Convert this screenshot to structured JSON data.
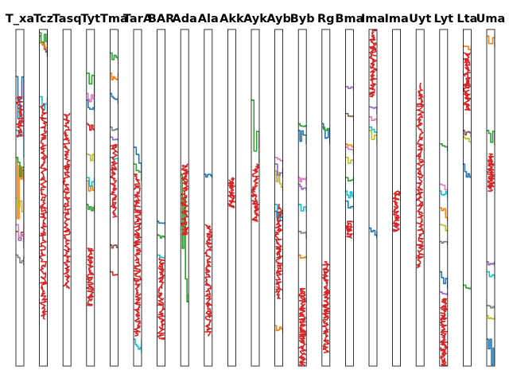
{
  "chart_data": {
    "type": "line",
    "layout": "small-multiples-row",
    "panel_count": 21,
    "grid": false,
    "axes_visible": false,
    "legend": "none",
    "panel_titles": [
      "T_xa",
      "Tcz",
      "Tasq",
      "Tyt",
      "Tma",
      "TarA",
      "BAR",
      "Ada",
      "Ala",
      "Akk",
      "Ayk",
      "Ayb",
      "Byb",
      "Rg",
      "Bma",
      "Ima",
      "Ima",
      "Uyt",
      "Lyt",
      "Lta",
      "Uma"
    ],
    "palette": {
      "red": "#d62728",
      "blue": "#1f77b4",
      "orange": "#ff7f0e",
      "green": "#2ca02c",
      "purple": "#9467bd",
      "brown": "#8c564b",
      "pink": "#e377c2",
      "gray": "#7f7f7f",
      "olive": "#bcbd22",
      "cyan": "#17becf"
    },
    "y_range": [
      0,
      1
    ],
    "panels": [
      {
        "traces": [
          {
            "color": "red",
            "kind": "noisy",
            "y_range": [
              0.68,
              0.8
            ],
            "density": 60
          },
          {
            "color": "blue",
            "kind": "step",
            "y_range": [
              0.68,
              0.86
            ]
          },
          {
            "color": "orange",
            "kind": "step",
            "y_range": [
              0.4,
              0.62
            ]
          },
          {
            "color": "green",
            "kind": "step",
            "y_range": [
              0.55,
              0.62
            ]
          },
          {
            "color": "cyan",
            "kind": "step",
            "y_range": [
              0.62,
              0.7
            ]
          },
          {
            "color": "purple",
            "kind": "step",
            "y_range": [
              0.35,
              0.4
            ]
          },
          {
            "color": "brown",
            "kind": "step",
            "y_range": [
              0.37,
              0.4
            ]
          },
          {
            "color": "olive",
            "kind": "step",
            "y_range": [
              0.45,
              0.5
            ]
          },
          {
            "color": "pink",
            "kind": "step",
            "y_range": [
              0.36,
              0.42
            ]
          },
          {
            "color": "gray",
            "kind": "step",
            "y_range": [
              0.3,
              0.33
            ]
          }
        ]
      },
      {
        "traces": [
          {
            "color": "red",
            "kind": "noisy",
            "y_range": [
              0.14,
              0.78
            ],
            "density": 220
          },
          {
            "color": "brown",
            "kind": "step",
            "y_range": [
              0.92,
              0.98
            ]
          },
          {
            "color": "green",
            "kind": "step",
            "y_range": [
              0.95,
              0.99
            ]
          },
          {
            "color": "cyan",
            "kind": "step",
            "y_range": [
              0.75,
              0.8
            ]
          },
          {
            "color": "orange",
            "kind": "step",
            "y_range": [
              0.94,
              0.96
            ]
          }
        ]
      },
      {
        "traces": [
          {
            "color": "red",
            "kind": "noisy",
            "y_range": [
              0.23,
              0.75
            ],
            "density": 200
          }
        ]
      },
      {
        "traces": [
          {
            "color": "red",
            "kind": "noisy",
            "y_range": [
              0.18,
              0.35
            ],
            "density": 90
          },
          {
            "color": "red",
            "kind": "step",
            "y_range": [
              0.7,
              0.72
            ]
          },
          {
            "color": "green",
            "kind": "step",
            "y_range": [
              0.8,
              0.87
            ]
          },
          {
            "color": "pink",
            "kind": "step",
            "y_range": [
              0.78,
              0.81
            ]
          },
          {
            "color": "blue",
            "kind": "step",
            "y_range": [
              0.76,
              0.79
            ]
          },
          {
            "color": "olive",
            "kind": "step",
            "y_range": [
              0.61,
              0.63
            ]
          },
          {
            "color": "orange",
            "kind": "step",
            "y_range": [
              0.52,
              0.55
            ]
          },
          {
            "color": "cyan",
            "kind": "step",
            "y_range": [
              0.53,
              0.56
            ]
          },
          {
            "color": "green",
            "kind": "step",
            "y_range": [
              0.46,
              0.48
            ]
          }
        ]
      },
      {
        "traces": [
          {
            "color": "red",
            "kind": "noisy",
            "y_range": [
              0.44,
              0.66
            ],
            "density": 90
          },
          {
            "color": "red",
            "kind": "step",
            "y_range": [
              0.27,
              0.28
            ]
          },
          {
            "color": "green",
            "kind": "step",
            "y_range": [
              0.91,
              0.93
            ]
          },
          {
            "color": "orange",
            "kind": "step",
            "y_range": [
              0.85,
              0.87
            ]
          },
          {
            "color": "blue",
            "kind": "step",
            "y_range": [
              0.78,
              0.81
            ]
          },
          {
            "color": "gray",
            "kind": "step",
            "y_range": [
              0.7,
              0.71
            ]
          },
          {
            "color": "purple",
            "kind": "step",
            "y_range": [
              0.67,
              0.68
            ]
          },
          {
            "color": "cyan",
            "kind": "step",
            "y_range": [
              0.61,
              0.62
            ]
          },
          {
            "color": "brown",
            "kind": "step",
            "y_range": [
              0.35,
              0.36
            ]
          }
        ]
      },
      {
        "traces": [
          {
            "color": "red",
            "kind": "noisy",
            "y_range": [
              0.09,
              0.57
            ],
            "density": 200
          },
          {
            "color": "blue",
            "kind": "step",
            "y_range": [
              0.58,
              0.65
            ]
          },
          {
            "color": "cyan",
            "kind": "step",
            "y_range": [
              0.04,
              0.08
            ]
          },
          {
            "color": "green",
            "kind": "step",
            "y_range": [
              0.55,
              0.6
            ]
          }
        ]
      },
      {
        "traces": [
          {
            "color": "red",
            "kind": "noisy",
            "y_range": [
              0.08,
              0.32
            ],
            "density": 120
          },
          {
            "color": "blue",
            "kind": "step",
            "y_range": [
              0.42,
              0.43
            ]
          },
          {
            "color": "green",
            "kind": "step",
            "y_range": [
              0.38,
              0.39
            ]
          },
          {
            "color": "cyan",
            "kind": "step",
            "y_range": [
              0.32,
              0.33
            ]
          }
        ]
      },
      {
        "traces": [
          {
            "color": "red",
            "kind": "noisy",
            "y_range": [
              0.39,
              0.6
            ],
            "density": 100
          },
          {
            "color": "green",
            "kind": "step",
            "y_range": [
              0.19,
              0.57
            ]
          }
        ]
      },
      {
        "traces": [
          {
            "color": "red",
            "kind": "noisy",
            "y_range": [
              0.09,
              0.42
            ],
            "density": 130
          },
          {
            "color": "blue",
            "kind": "step",
            "y_range": [
              0.56,
              0.57
            ]
          }
        ]
      },
      {
        "traces": [
          {
            "color": "red",
            "kind": "noisy",
            "y_range": [
              0.47,
              0.56
            ],
            "density": 60
          }
        ]
      },
      {
        "traces": [
          {
            "color": "red",
            "kind": "noisy",
            "y_range": [
              0.43,
              0.6
            ],
            "density": 90
          },
          {
            "color": "green",
            "kind": "step",
            "y_range": [
              0.6,
              0.79
            ]
          }
        ]
      },
      {
        "traces": [
          {
            "color": "red",
            "kind": "noisy",
            "y_range": [
              0.2,
              0.48
            ],
            "density": 120
          },
          {
            "color": "pink",
            "kind": "step",
            "y_range": [
              0.6,
              0.62
            ]
          },
          {
            "color": "cyan",
            "kind": "step",
            "y_range": [
              0.42,
              0.48
            ]
          },
          {
            "color": "olive",
            "kind": "step",
            "y_range": [
              0.52,
              0.58
            ]
          },
          {
            "color": "orange",
            "kind": "step",
            "y_range": [
              0.1,
              0.12
            ]
          },
          {
            "color": "purple",
            "kind": "step",
            "y_range": [
              0.56,
              0.6
            ]
          },
          {
            "color": "blue",
            "kind": "step",
            "y_range": [
              0.44,
              0.46
            ]
          }
        ]
      },
      {
        "traces": [
          {
            "color": "red",
            "kind": "noisy",
            "y_range": [
              0.0,
              0.23
            ],
            "density": 150
          },
          {
            "color": "green",
            "kind": "step",
            "y_range": [
              0.71,
              0.72
            ]
          },
          {
            "color": "blue",
            "kind": "step",
            "y_range": [
              0.66,
              0.7
            ]
          },
          {
            "color": "pink",
            "kind": "step",
            "y_range": [
              0.54,
              0.56
            ]
          },
          {
            "color": "purple",
            "kind": "step",
            "y_range": [
              0.52,
              0.54
            ]
          },
          {
            "color": "cyan",
            "kind": "step",
            "y_range": [
              0.46,
              0.48
            ]
          },
          {
            "color": "gray",
            "kind": "step",
            "y_range": [
              0.38,
              0.4
            ]
          },
          {
            "color": "orange",
            "kind": "step",
            "y_range": [
              0.32,
              0.33
            ]
          }
        ]
      },
      {
        "traces": [
          {
            "color": "red",
            "kind": "noisy",
            "y_range": [
              0.04,
              0.31
            ],
            "density": 150
          },
          {
            "color": "blue",
            "kind": "step",
            "y_range": [
              0.66,
              0.72
            ]
          },
          {
            "color": "green",
            "kind": "step",
            "y_range": [
              0.7,
              0.71
            ]
          }
        ]
      },
      {
        "traces": [
          {
            "color": "red",
            "kind": "noisy",
            "y_range": [
              0.38,
              0.43
            ],
            "density": 40
          },
          {
            "color": "purple",
            "kind": "step",
            "y_range": [
              0.82,
              0.83
            ]
          },
          {
            "color": "orange",
            "kind": "step",
            "y_range": [
              0.65,
              0.66
            ]
          },
          {
            "color": "olive",
            "kind": "step",
            "y_range": [
              0.6,
              0.62
            ]
          },
          {
            "color": "pink",
            "kind": "step",
            "y_range": [
              0.63,
              0.65
            ]
          },
          {
            "color": "brown",
            "kind": "step",
            "y_range": [
              0.74,
              0.75
            ]
          },
          {
            "color": "green",
            "kind": "step",
            "y_range": [
              0.55,
              0.56
            ]
          },
          {
            "color": "blue",
            "kind": "step",
            "y_range": [
              0.47,
              0.49
            ]
          },
          {
            "color": "cyan",
            "kind": "step",
            "y_range": [
              0.5,
              0.52
            ]
          }
        ]
      },
      {
        "traces": [
          {
            "color": "red",
            "kind": "noisy",
            "y_range": [
              0.8,
              1.0
            ],
            "density": 120
          },
          {
            "color": "blue",
            "kind": "step",
            "y_range": [
              0.38,
              0.41
            ]
          },
          {
            "color": "olive",
            "kind": "step",
            "y_range": [
              0.66,
              0.7
            ]
          },
          {
            "color": "pink",
            "kind": "step",
            "y_range": [
              0.72,
              0.74
            ]
          },
          {
            "color": "purple",
            "kind": "step",
            "y_range": [
              0.75,
              0.77
            ]
          },
          {
            "color": "cyan",
            "kind": "step",
            "y_range": [
              0.69,
              0.71
            ]
          }
        ]
      },
      {
        "traces": [
          {
            "color": "red",
            "kind": "noisy",
            "y_range": [
              0.4,
              0.52
            ],
            "density": 70
          }
        ]
      },
      {
        "traces": [
          {
            "color": "red",
            "kind": "noisy",
            "y_range": [
              0.29,
              0.84
            ],
            "density": 220
          }
        ]
      },
      {
        "traces": [
          {
            "color": "red",
            "kind": "noisy",
            "y_range": [
              0.0,
              0.2
            ],
            "density": 130
          },
          {
            "color": "blue",
            "kind": "step",
            "y_range": [
              0.23,
              0.28
            ]
          },
          {
            "color": "green",
            "kind": "step",
            "y_range": [
              0.64,
              0.66
            ]
          },
          {
            "color": "orange",
            "kind": "step",
            "y_range": [
              0.43,
              0.47
            ]
          },
          {
            "color": "olive",
            "kind": "step",
            "y_range": [
              0.4,
              0.42
            ]
          },
          {
            "color": "pink",
            "kind": "step",
            "y_range": [
              0.52,
              0.54
            ]
          },
          {
            "color": "cyan",
            "kind": "step",
            "y_range": [
              0.5,
              0.52
            ]
          },
          {
            "color": "purple",
            "kind": "step",
            "y_range": [
              0.21,
              0.22
            ]
          },
          {
            "color": "gray",
            "kind": "step",
            "y_range": [
              0.36,
              0.37
            ]
          }
        ]
      },
      {
        "traces": [
          {
            "color": "red",
            "kind": "noisy",
            "y_range": [
              0.76,
              0.93
            ],
            "density": 110
          },
          {
            "color": "blue",
            "kind": "step",
            "y_range": [
              0.56,
              0.6
            ]
          },
          {
            "color": "orange",
            "kind": "step",
            "y_range": [
              0.93,
              0.95
            ]
          },
          {
            "color": "green",
            "kind": "step",
            "y_range": [
              0.23,
              0.24
            ]
          },
          {
            "color": "olive",
            "kind": "step",
            "y_range": [
              0.66,
              0.68
            ]
          },
          {
            "color": "brown",
            "kind": "step",
            "y_range": [
              0.68,
              0.7
            ]
          }
        ]
      },
      {
        "traces": [
          {
            "color": "red",
            "kind": "noisy",
            "y_range": [
              0.52,
              0.63
            ],
            "density": 80
          },
          {
            "color": "green",
            "kind": "step",
            "y_range": [
              0.66,
              0.7
            ]
          },
          {
            "color": "blue",
            "kind": "step",
            "y_range": [
              0.0,
              0.08
            ]
          },
          {
            "color": "cyan",
            "kind": "step",
            "y_range": [
              0.26,
              0.28
            ]
          },
          {
            "color": "purple",
            "kind": "step",
            "y_range": [
              0.3,
              0.31
            ]
          },
          {
            "color": "orange",
            "kind": "step",
            "y_range": [
              0.95,
              0.98
            ]
          },
          {
            "color": "olive",
            "kind": "step",
            "y_range": [
              0.14,
              0.15
            ]
          },
          {
            "color": "gray",
            "kind": "step",
            "y_range": [
              0.17,
              0.18
            ]
          }
        ]
      }
    ]
  }
}
